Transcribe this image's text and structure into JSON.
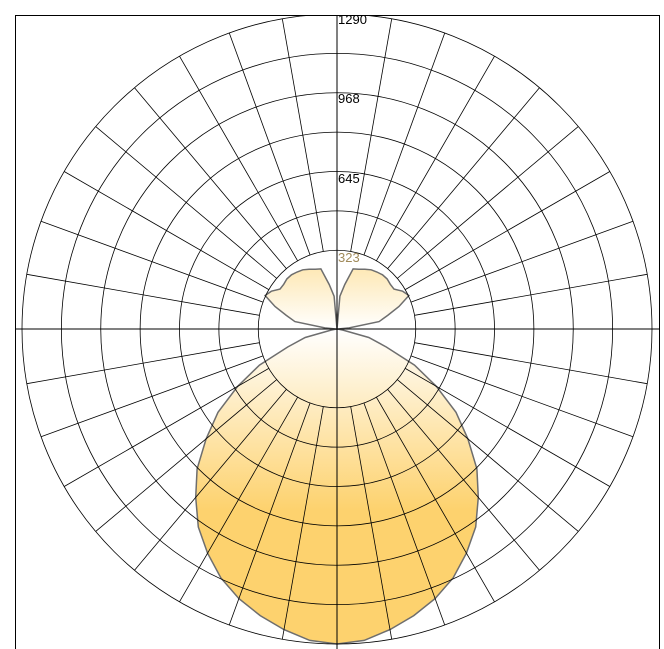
{
  "chart_data": {
    "type": "polar",
    "title": "",
    "radial_ticks": [
      "323",
      "645",
      "968",
      "1290"
    ],
    "radial_tick_values": [
      323,
      645,
      968,
      1290
    ],
    "rmax": 1290,
    "angle_step_deg": 10,
    "grid": true,
    "colors": {
      "fill_top": "#ffffff",
      "fill_bottom": "#fdd26e",
      "outline": "#6e6e6e",
      "grid": "#000000"
    },
    "series": [
      {
        "angles_deg": [
          0,
          5,
          10,
          15,
          20,
          25,
          30,
          35,
          40,
          45,
          50,
          55,
          60,
          65,
          70,
          75,
          80,
          85,
          90
        ],
        "lower_values": [
          1290,
          1280,
          1250,
          1215,
          1175,
          1125,
          1060,
          990,
          900,
          810,
          700,
          595,
          470,
          350,
          215,
          135,
          25,
          5,
          0
        ],
        "upper_values": [
          0,
          135,
          185,
          255,
          260,
          270,
          280,
          285,
          290,
          290,
          285,
          285,
          310,
          325,
          270,
          215,
          175,
          50,
          5
        ]
      }
    ]
  }
}
